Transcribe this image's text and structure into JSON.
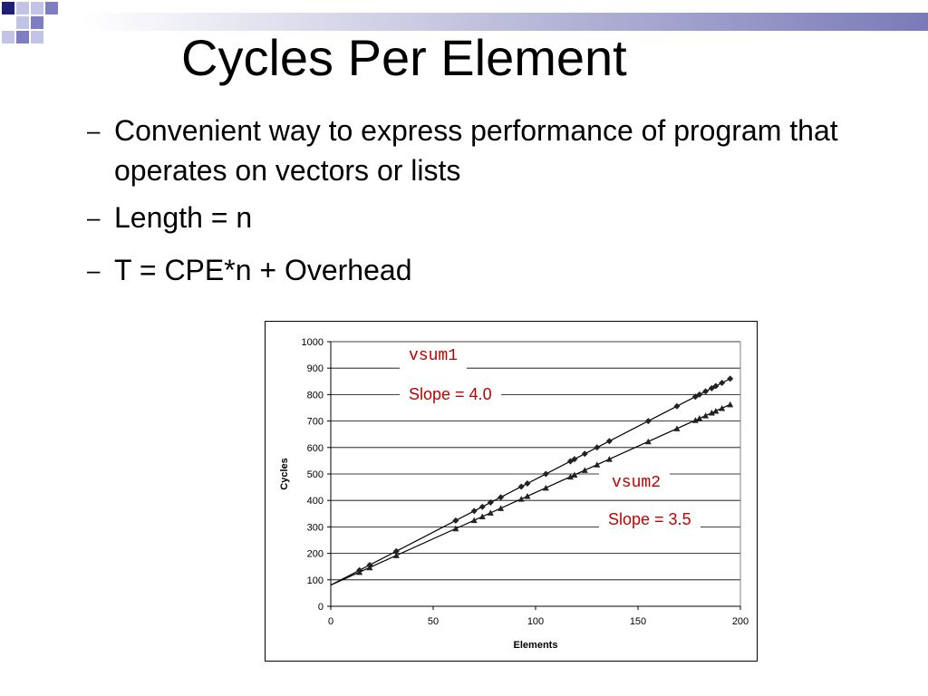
{
  "slide": {
    "title": "Cycles Per Element",
    "bullets": [
      {
        "dash": "–",
        "text": "Convenient way to express performance of program that operates on vectors or lists"
      },
      {
        "dash": "–",
        "text": "Length = n"
      },
      {
        "dash": "–",
        "text": "T = CPE*n + Overhead"
      }
    ]
  },
  "colors": {
    "decor_dark": "#1f1f7a",
    "decor_mid": "#7f7fc0",
    "decor_light": "#c3c3e6",
    "annotation": "#c00000"
  },
  "annotations": {
    "vsum1_name": "vsum1",
    "vsum1_slope": "Slope = 4.0",
    "vsum2_name": "vsum2",
    "vsum2_slope": "Slope = 3.5"
  },
  "chart_data": {
    "type": "scatter",
    "title": "",
    "xlabel": "Elements",
    "ylabel": "Cycles",
    "xlim": [
      0,
      200
    ],
    "ylim": [
      0,
      1000
    ],
    "xticks": [
      0,
      50,
      100,
      150,
      200
    ],
    "yticks": [
      0,
      100,
      200,
      300,
      400,
      500,
      600,
      700,
      800,
      900,
      1000
    ],
    "grid": "horizontal",
    "legend": "none",
    "series": [
      {
        "name": "vsum1",
        "marker": "diamond",
        "fit": {
          "slope": 4.0,
          "intercept": 80
        },
        "x": [
          14,
          19,
          32,
          61,
          70,
          74,
          78,
          83,
          93,
          96,
          105,
          117,
          119,
          124,
          130,
          136,
          155,
          169,
          178,
          180,
          183,
          186,
          188,
          191,
          195
        ],
        "y": [
          136,
          156,
          208,
          324,
          360,
          376,
          392,
          412,
          452,
          464,
          500,
          548,
          556,
          576,
          600,
          624,
          700,
          756,
          792,
          800,
          812,
          824,
          832,
          844,
          860
        ]
      },
      {
        "name": "vsum2",
        "marker": "triangle",
        "fit": {
          "slope": 3.5,
          "intercept": 80
        },
        "x": [
          14,
          19,
          32,
          61,
          70,
          74,
          78,
          83,
          93,
          96,
          105,
          117,
          119,
          124,
          130,
          136,
          155,
          169,
          178,
          180,
          183,
          186,
          188,
          191,
          195
        ],
        "y": [
          129,
          146.5,
          192,
          293.5,
          325,
          339,
          353,
          370.5,
          405.5,
          416,
          447.5,
          489.5,
          496.5,
          514,
          535,
          556,
          622.5,
          671.5,
          703,
          710,
          720.5,
          731,
          738,
          748.5,
          762.5
        ]
      }
    ]
  }
}
